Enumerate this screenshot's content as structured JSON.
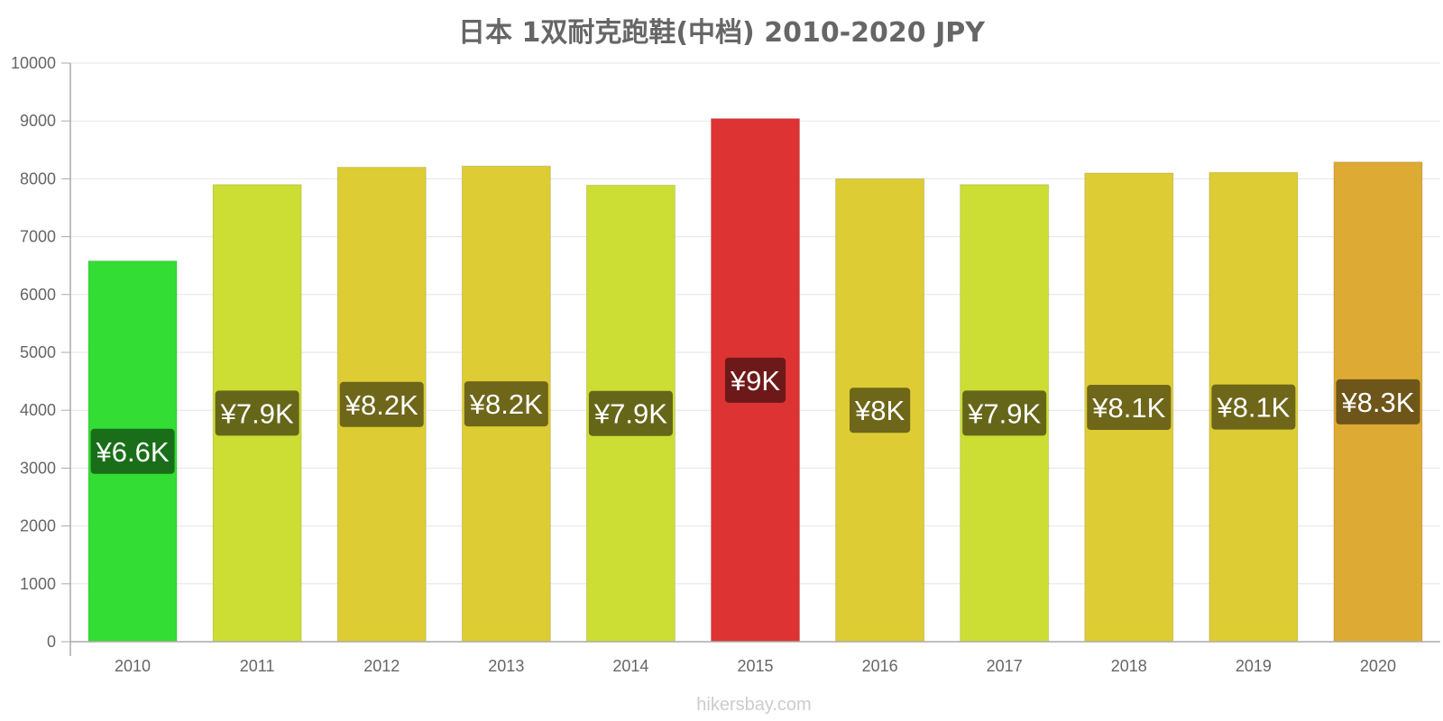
{
  "chart_data": {
    "type": "bar",
    "title": "日本 1双耐克跑鞋(中档) 2010-2020 JPY",
    "xlabel": "",
    "ylabel": "",
    "ylim": [
      0,
      10000
    ],
    "yticks": [
      0,
      1000,
      2000,
      3000,
      4000,
      5000,
      6000,
      7000,
      8000,
      9000,
      10000
    ],
    "grid": true,
    "categories": [
      "2010",
      "2011",
      "2012",
      "2013",
      "2014",
      "2015",
      "2016",
      "2017",
      "2018",
      "2019",
      "2020"
    ],
    "values": [
      6580,
      7900,
      8200,
      8220,
      7890,
      9040,
      8000,
      7900,
      8100,
      8110,
      8290
    ],
    "data_labels": [
      "¥6.6K",
      "¥7.9K",
      "¥8.2K",
      "¥8.2K",
      "¥7.9K",
      "¥9K",
      "¥8K",
      "¥7.9K",
      "¥8.1K",
      "¥8.1K",
      "¥8.3K"
    ],
    "bar_colors": [
      "#33dd33",
      "#ccdd33",
      "#ddcc33",
      "#ddcc33",
      "#ccdd33",
      "#dd3333",
      "#ddcc33",
      "#ccdd33",
      "#ddcc33",
      "#ddcc33",
      "#ddaa33"
    ],
    "label_bg_colors": [
      "#1a6e1a",
      "#666619",
      "#6e6619",
      "#6e6619",
      "#666619",
      "#6e1919",
      "#6e6619",
      "#666619",
      "#6e6619",
      "#6e6619",
      "#6e5519"
    ]
  },
  "watermark": "hikersbay.com"
}
